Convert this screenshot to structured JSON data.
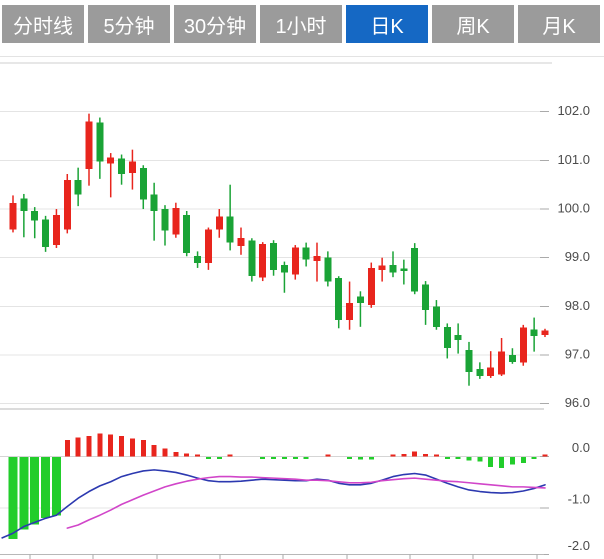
{
  "tabs": {
    "items": [
      {
        "label": "分时线",
        "name": "tab-time-line",
        "active": false
      },
      {
        "label": "5分钟",
        "name": "tab-5min",
        "active": false
      },
      {
        "label": "30分钟",
        "name": "tab-30min",
        "active": false
      },
      {
        "label": "1小时",
        "name": "tab-1hour",
        "active": false
      },
      {
        "label": "日K",
        "name": "tab-daily-k",
        "active": true
      },
      {
        "label": "周K",
        "name": "tab-weekly-k",
        "active": false
      },
      {
        "label": "月K",
        "name": "tab-monthly-k",
        "active": false
      }
    ],
    "active_bg": "#1568c4",
    "inactive_bg": "#9b9b9b",
    "text_color": "#ffffff"
  },
  "colors": {
    "candle_up": "#e8251d",
    "candle_down": "#1aa336",
    "hist_up": "#e8251d",
    "hist_down": "#22cd2b",
    "dif_line": "#2c39b0",
    "dea_line": "#d145c9",
    "grid": "#e4e4e4",
    "zero_line": "#d5d5d5",
    "axis": "#b8b8b8",
    "tick": "#aaaaaa",
    "label": "#4b4b4b",
    "background": "#ffffff"
  },
  "chart_data": {
    "type": "candlestick",
    "title": "",
    "legend": "none",
    "grid": "on",
    "price_pane": {
      "ylabels": [
        "102.0",
        "101.0",
        "100.0",
        "99.0",
        "98.0",
        "97.0",
        "96.0"
      ],
      "yvalues": [
        102,
        101,
        100,
        99,
        98,
        97,
        96
      ],
      "ylim": [
        95.9,
        103.0
      ],
      "candles_ohlc": [
        [
          99.58,
          100.28,
          99.52,
          100.12
        ],
        [
          100.22,
          100.31,
          99.42,
          99.96
        ],
        [
          99.96,
          100.04,
          99.4,
          99.76
        ],
        [
          99.78,
          99.86,
          99.12,
          99.22
        ],
        [
          99.26,
          100.0,
          99.2,
          99.88
        ],
        [
          99.58,
          100.72,
          99.5,
          100.6
        ],
        [
          100.6,
          100.85,
          100.06,
          100.3
        ],
        [
          100.82,
          101.96,
          100.48,
          101.8
        ],
        [
          101.78,
          101.88,
          100.62,
          100.98
        ],
        [
          100.94,
          101.15,
          100.24,
          101.06
        ],
        [
          101.04,
          101.12,
          100.5,
          100.72
        ],
        [
          100.74,
          101.22,
          100.4,
          100.98
        ],
        [
          100.84,
          100.9,
          100.0,
          100.2
        ],
        [
          100.3,
          100.54,
          99.35,
          99.96
        ],
        [
          100.0,
          100.08,
          99.25,
          99.56
        ],
        [
          99.48,
          100.13,
          99.41,
          100.02
        ],
        [
          99.88,
          99.96,
          99.03,
          99.1
        ],
        [
          99.03,
          99.13,
          98.79,
          98.89
        ],
        [
          98.89,
          99.62,
          98.75,
          99.58
        ],
        [
          99.58,
          100.0,
          99.41,
          99.85
        ],
        [
          99.85,
          100.5,
          99.15,
          99.31
        ],
        [
          99.24,
          99.62,
          99.06,
          99.41
        ],
        [
          99.35,
          99.4,
          98.51,
          98.62
        ],
        [
          98.59,
          99.32,
          98.52,
          99.28
        ],
        [
          99.3,
          99.36,
          98.63,
          98.75
        ],
        [
          98.85,
          98.92,
          98.28,
          98.7
        ],
        [
          98.66,
          99.26,
          98.55,
          99.21
        ],
        [
          99.21,
          99.31,
          98.82,
          98.96
        ],
        [
          98.93,
          99.31,
          98.51,
          99.03
        ],
        [
          99.0,
          99.13,
          98.41,
          98.51
        ],
        [
          98.58,
          98.62,
          97.55,
          97.72
        ],
        [
          97.72,
          98.51,
          97.52,
          98.07
        ],
        [
          98.2,
          98.31,
          97.58,
          98.07
        ],
        [
          98.03,
          98.9,
          97.97,
          98.79
        ],
        [
          98.75,
          99.0,
          98.51,
          98.84
        ],
        [
          98.85,
          99.13,
          98.6,
          98.7
        ],
        [
          98.78,
          98.96,
          98.45,
          98.73
        ],
        [
          99.2,
          99.3,
          98.25,
          98.31
        ],
        [
          98.45,
          98.52,
          97.62,
          97.93
        ],
        [
          98.0,
          98.13,
          97.52,
          97.58
        ],
        [
          97.58,
          97.65,
          96.93,
          97.14
        ],
        [
          97.41,
          97.65,
          97.03,
          97.31
        ],
        [
          97.1,
          97.27,
          96.37,
          96.65
        ],
        [
          96.71,
          96.85,
          96.51,
          96.57
        ],
        [
          96.57,
          97.08,
          96.53,
          96.74
        ],
        [
          96.6,
          97.35,
          96.57,
          97.07
        ],
        [
          97.0,
          97.14,
          96.82,
          96.86
        ],
        [
          96.85,
          97.62,
          96.78,
          97.57
        ],
        [
          97.52,
          97.77,
          97.07,
          97.39
        ],
        [
          97.41,
          97.54,
          97.37,
          97.5
        ]
      ]
    },
    "macd_pane": {
      "ylabels": [
        "0.0",
        "-1.0",
        "-2.0"
      ],
      "yvalues": [
        0,
        -1,
        -2
      ],
      "ylim": [
        -2.0,
        0.45
      ],
      "histogram": [
        -1.59,
        -1.41,
        -1.31,
        -1.18,
        -1.14,
        0.32,
        0.37,
        0.4,
        0.45,
        0.43,
        0.4,
        0.35,
        0.32,
        0.22,
        0.16,
        0.09,
        0.06,
        0.025,
        -0.025,
        -0.025,
        0.025,
        0,
        0,
        -0.03,
        -0.03,
        -0.035,
        -0.035,
        -0.035,
        0,
        0.025,
        0,
        -0.04,
        -0.05,
        -0.05,
        0,
        0.035,
        0.045,
        0.1,
        0.05,
        0.03,
        -0.03,
        -0.04,
        -0.07,
        -0.09,
        -0.19,
        -0.21,
        -0.15,
        -0.12,
        -0.035,
        0.03
      ],
      "dif": {
        "start_index": -1,
        "values": [
          -1.58,
          -1.49,
          -1.36,
          -1.28,
          -1.2,
          -1.14,
          -0.97,
          -0.81,
          -0.68,
          -0.57,
          -0.49,
          -0.39,
          -0.33,
          -0.28,
          -0.26,
          -0.28,
          -0.31,
          -0.36,
          -0.42,
          -0.47,
          -0.49,
          -0.49,
          -0.48,
          -0.46,
          -0.44,
          -0.45,
          -0.46,
          -0.47,
          -0.47,
          -0.44,
          -0.46,
          -0.52,
          -0.55,
          -0.55,
          -0.52,
          -0.46,
          -0.39,
          -0.35,
          -0.33,
          -0.36,
          -0.44,
          -0.52,
          -0.59,
          -0.65,
          -0.68,
          -0.7,
          -0.71,
          -0.7,
          -0.67,
          -0.62,
          -0.55
        ]
      },
      "dea": {
        "start_index": 5,
        "values": [
          -1.39,
          -1.33,
          -1.23,
          -1.14,
          -1.04,
          -0.93,
          -0.84,
          -0.75,
          -0.67,
          -0.59,
          -0.53,
          -0.48,
          -0.44,
          -0.41,
          -0.39,
          -0.39,
          -0.4,
          -0.4,
          -0.41,
          -0.42,
          -0.43,
          -0.44,
          -0.46,
          -0.46,
          -0.47,
          -0.49,
          -0.51,
          -0.51,
          -0.5,
          -0.47,
          -0.45,
          -0.43,
          -0.42,
          -0.44,
          -0.46,
          -0.48,
          -0.49,
          -0.51,
          -0.53,
          -0.55,
          -0.57,
          -0.59,
          -0.59,
          -0.6,
          -0.61
        ]
      }
    }
  }
}
